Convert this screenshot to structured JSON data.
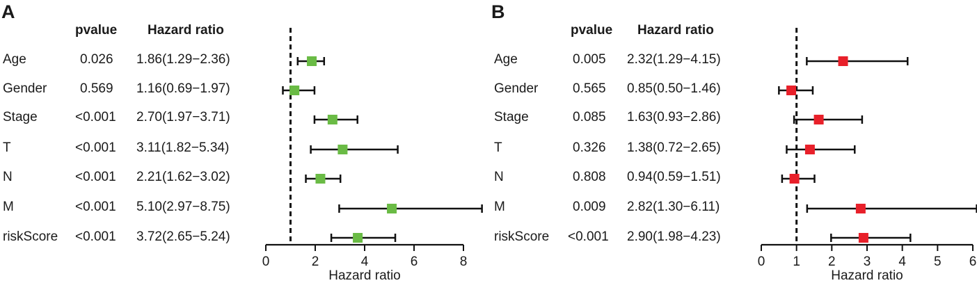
{
  "panels": [
    {
      "label": "A",
      "headers": {
        "pvalue": "pvalue",
        "hazard_ratio": "Hazard ratio"
      },
      "rows": [
        {
          "variable": "Age",
          "pvalue": "0.026",
          "hr_text": "1.86(1.29−2.36)"
        },
        {
          "variable": "Gender",
          "pvalue": "0.569",
          "hr_text": "1.16(0.69−1.97)"
        },
        {
          "variable": "Stage",
          "pvalue": "<0.001",
          "hr_text": "2.70(1.97−3.71)"
        },
        {
          "variable": "T",
          "pvalue": "<0.001",
          "hr_text": "3.11(1.82−5.34)"
        },
        {
          "variable": "N",
          "pvalue": "<0.001",
          "hr_text": "2.21(1.62−3.02)"
        },
        {
          "variable": "M",
          "pvalue": "<0.001",
          "hr_text": "5.10(2.97−8.75)"
        },
        {
          "variable": "riskScore",
          "pvalue": "<0.001",
          "hr_text": "3.72(2.65−5.24)"
        }
      ]
    },
    {
      "label": "B",
      "headers": {
        "pvalue": "pvalue",
        "hazard_ratio": "Hazard ratio"
      },
      "rows": [
        {
          "variable": "Age",
          "pvalue": "0.005",
          "hr_text": "2.32(1.29−4.15)"
        },
        {
          "variable": "Gender",
          "pvalue": "0.565",
          "hr_text": "0.85(0.50−1.46)"
        },
        {
          "variable": "Stage",
          "pvalue": "0.085",
          "hr_text": "1.63(0.93−2.86)"
        },
        {
          "variable": "T",
          "pvalue": "0.326",
          "hr_text": "1.38(0.72−2.65)"
        },
        {
          "variable": "N",
          "pvalue": "0.808",
          "hr_text": "0.94(0.59−1.51)"
        },
        {
          "variable": "M",
          "pvalue": "0.009",
          "hr_text": "2.82(1.30−6.11)"
        },
        {
          "variable": "riskScore",
          "pvalue": "<0.001",
          "hr_text": "2.90(1.98−4.23)"
        }
      ]
    }
  ],
  "chart_data": [
    {
      "type": "forest",
      "panel": "A",
      "title": "",
      "xlabel": "Hazard ratio",
      "xlim": [
        0,
        8
      ],
      "xticks": [
        0,
        2,
        4,
        6,
        8
      ],
      "reference_line": 1,
      "marker_color": "#6abb45",
      "categories": [
        "Age",
        "Gender",
        "Stage",
        "T",
        "N",
        "M",
        "riskScore"
      ],
      "hr": [
        1.86,
        1.16,
        2.7,
        3.11,
        2.21,
        5.1,
        3.72
      ],
      "lower": [
        1.29,
        0.69,
        1.97,
        1.82,
        1.62,
        2.97,
        2.65
      ],
      "upper": [
        2.36,
        1.97,
        3.71,
        5.34,
        3.02,
        8.75,
        5.24
      ]
    },
    {
      "type": "forest",
      "panel": "B",
      "title": "",
      "xlabel": "Hazard ratio",
      "xlim": [
        0,
        6
      ],
      "xticks": [
        0,
        1,
        2,
        3,
        4,
        5,
        6
      ],
      "reference_line": 1,
      "marker_color": "#e8202a",
      "categories": [
        "Age",
        "Gender",
        "Stage",
        "T",
        "N",
        "M",
        "riskScore"
      ],
      "hr": [
        2.32,
        0.85,
        1.63,
        1.38,
        0.94,
        2.82,
        2.9
      ],
      "lower": [
        1.29,
        0.5,
        0.93,
        0.72,
        0.59,
        1.3,
        1.98
      ],
      "upper": [
        4.15,
        1.46,
        2.86,
        2.65,
        1.51,
        6.11,
        4.23
      ]
    }
  ]
}
